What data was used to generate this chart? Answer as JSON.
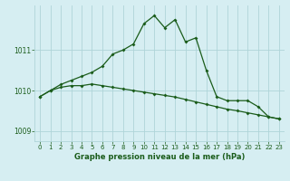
{
  "title": "Graphe pression niveau de la mer (hPa)",
  "background_color": "#d6eef2",
  "line_color": "#1a5c1a",
  "grid_color": "#afd4d8",
  "xlabel_color": "#1a5c1a",
  "xlim": [
    -0.5,
    23.5
  ],
  "ylim": [
    1008.75,
    1012.1
  ],
  "yticks": [
    1009,
    1010,
    1011
  ],
  "xticks": [
    0,
    1,
    2,
    3,
    4,
    5,
    6,
    7,
    8,
    9,
    10,
    11,
    12,
    13,
    14,
    15,
    16,
    17,
    18,
    19,
    20,
    21,
    22,
    23
  ],
  "series1_x": [
    0,
    1,
    2,
    3,
    4,
    5,
    6,
    7,
    8,
    9,
    10,
    11,
    12,
    13,
    14,
    15,
    16,
    17,
    18,
    19,
    20,
    21,
    22,
    23
  ],
  "series1_y": [
    1009.85,
    1010.0,
    1010.15,
    1010.25,
    1010.35,
    1010.45,
    1010.6,
    1010.9,
    1011.0,
    1011.15,
    1011.65,
    1011.85,
    1011.55,
    1011.75,
    1011.2,
    1011.3,
    1010.5,
    1009.85,
    1009.75,
    1009.75,
    1009.75,
    1009.6,
    1009.35,
    1009.3
  ],
  "series2_x": [
    0,
    1,
    2,
    3,
    4,
    5,
    6,
    7,
    8,
    9,
    10,
    11,
    12,
    13,
    14,
    15,
    16,
    17,
    18,
    19,
    20,
    21,
    22,
    23
  ],
  "series2_y": [
    1009.85,
    1010.0,
    1010.08,
    1010.12,
    1010.12,
    1010.16,
    1010.12,
    1010.08,
    1010.04,
    1010.0,
    1009.96,
    1009.92,
    1009.88,
    1009.84,
    1009.78,
    1009.72,
    1009.66,
    1009.6,
    1009.54,
    1009.5,
    1009.45,
    1009.4,
    1009.35,
    1009.3
  ]
}
